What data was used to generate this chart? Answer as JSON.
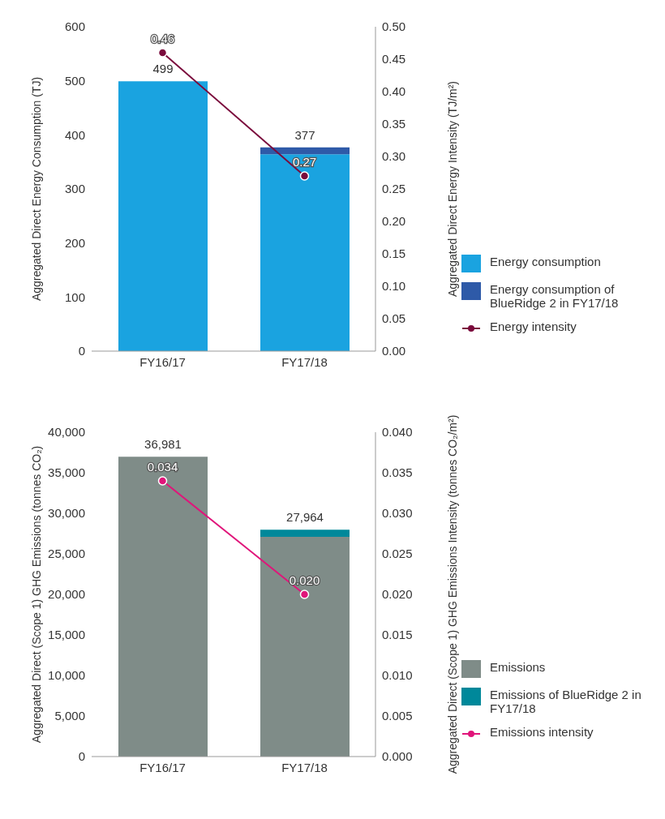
{
  "chart_data": [
    {
      "type": "bar",
      "stacked": true,
      "categories": [
        "FY16/17",
        "FY17/18"
      ],
      "ylabel": "Aggregated Direct Energy Consumption (TJ)",
      "y2label": "Aggregated Direct Energy Intensity (TJ/m²)",
      "series": [
        {
          "name": "Energy consumption",
          "color": "#1aa3e0",
          "values": [
            499,
            364
          ]
        },
        {
          "name": "Energy consumption of BlueRidge 2 in FY17/18",
          "color": "#2e5aa8",
          "values": [
            0,
            13
          ]
        },
        {
          "name": "Energy intensity",
          "type": "line",
          "axis": "y2",
          "color": "#7a0a3c",
          "values": [
            0.46,
            0.27
          ],
          "value_labels": [
            "0.46",
            "0.27"
          ]
        }
      ],
      "totals": [
        "499",
        "377"
      ],
      "ylim": [
        0,
        600
      ],
      "yticks": [
        0,
        100,
        200,
        300,
        400,
        500,
        600
      ],
      "y2lim": [
        0,
        0.5
      ],
      "y2ticks": [
        {
          "value": 0,
          "label": "0.00"
        },
        {
          "value": 0.05,
          "label": "0.05"
        },
        {
          "value": 0.1,
          "label": "0.10"
        },
        {
          "value": 0.15,
          "label": "0.15"
        },
        {
          "value": 0.2,
          "label": "0.20"
        },
        {
          "value": 0.25,
          "label": "0.25"
        },
        {
          "value": 0.3,
          "label": "0.30"
        },
        {
          "value": 0.35,
          "label": "0.35"
        },
        {
          "value": 0.4,
          "label": "0.40"
        },
        {
          "value": 0.45,
          "label": "0.45"
        },
        {
          "value": 0.5,
          "label": "0.50"
        }
      ],
      "grid": false,
      "legend": "right",
      "marker": "circle"
    },
    {
      "type": "bar",
      "stacked": true,
      "categories": [
        "FY16/17",
        "FY17/18"
      ],
      "ylabel": "Aggregated Direct (Scope 1) GHG Emissions (tonnes CO₂)",
      "y2label": "Aggregated Direct (Scope 1) GHG Emissions Intensity (tonnes CO₂/m²)",
      "series": [
        {
          "name": "Emissions",
          "color": "#7f8c88",
          "values": [
            36981,
            27100
          ]
        },
        {
          "name": "Emissions of BlueRidge 2 in FY17/18",
          "color": "#00889a",
          "values": [
            0,
            864
          ]
        },
        {
          "name": "Emissions intensity",
          "type": "line",
          "axis": "y2",
          "color": "#e0157a",
          "values": [
            0.034,
            0.02
          ],
          "value_labels": [
            "0.034",
            "0.020"
          ]
        }
      ],
      "totals": [
        "36,981",
        "27,964"
      ],
      "ylim": [
        0,
        40000
      ],
      "yticks": [
        {
          "value": 0,
          "label": "0"
        },
        {
          "value": 5000,
          "label": "5,000"
        },
        {
          "value": 10000,
          "label": "10,000"
        },
        {
          "value": 15000,
          "label": "15,000"
        },
        {
          "value": 20000,
          "label": "20,000"
        },
        {
          "value": 25000,
          "label": "25,000"
        },
        {
          "value": 30000,
          "label": "30,000"
        },
        {
          "value": 35000,
          "label": "35,000"
        },
        {
          "value": 40000,
          "label": "40,000"
        }
      ],
      "y2lim": [
        0,
        0.04
      ],
      "y2ticks": [
        {
          "value": 0,
          "label": "0.000"
        },
        {
          "value": 0.005,
          "label": "0.005"
        },
        {
          "value": 0.01,
          "label": "0.010"
        },
        {
          "value": 0.015,
          "label": "0.015"
        },
        {
          "value": 0.02,
          "label": "0.020"
        },
        {
          "value": 0.025,
          "label": "0.025"
        },
        {
          "value": 0.03,
          "label": "0.030"
        },
        {
          "value": 0.035,
          "label": "0.035"
        },
        {
          "value": 0.04,
          "label": "0.040"
        }
      ],
      "grid": false,
      "legend": "right",
      "marker": "circle"
    }
  ]
}
